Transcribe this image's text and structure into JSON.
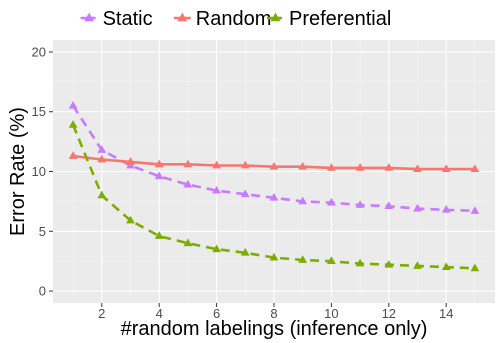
{
  "chart_data": {
    "type": "line",
    "xlabel": "#random labelings (inference only)",
    "ylabel": "Error Rate (%)",
    "xlim": [
      0.3,
      15.7
    ],
    "ylim": [
      -1,
      21
    ],
    "x_ticks": [
      2,
      4,
      6,
      8,
      10,
      12,
      14
    ],
    "y_ticks": [
      0,
      5,
      10,
      15,
      20
    ],
    "x_tick_labels": [
      "2",
      "4",
      "6",
      "8",
      "10",
      "12",
      "14"
    ],
    "y_tick_labels": [
      "0",
      "5",
      "10",
      "15",
      "20"
    ],
    "grid": true,
    "legend_position": "top",
    "x": [
      1,
      2,
      3,
      4,
      5,
      6,
      7,
      8,
      9,
      10,
      11,
      12,
      13,
      14,
      15
    ],
    "series": [
      {
        "name": "Static",
        "color": "#c77cff",
        "line_style": "dashed",
        "marker": "triangle",
        "values": [
          15.5,
          11.8,
          10.5,
          9.6,
          8.9,
          8.4,
          8.1,
          7.8,
          7.5,
          7.4,
          7.2,
          7.1,
          6.9,
          6.8,
          6.7
        ]
      },
      {
        "name": "Random",
        "color": "#f8766d",
        "line_style": "solid",
        "marker": "triangle",
        "values": [
          11.3,
          11.0,
          10.8,
          10.6,
          10.6,
          10.5,
          10.5,
          10.4,
          10.4,
          10.3,
          10.3,
          10.3,
          10.2,
          10.2,
          10.2
        ]
      },
      {
        "name": "Preferential",
        "color": "#7cae00",
        "line_style": "dashed",
        "marker": "triangle",
        "values": [
          13.9,
          8.0,
          5.9,
          4.6,
          4.0,
          3.5,
          3.2,
          2.8,
          2.6,
          2.5,
          2.3,
          2.2,
          2.1,
          2.0,
          1.9
        ]
      }
    ]
  }
}
